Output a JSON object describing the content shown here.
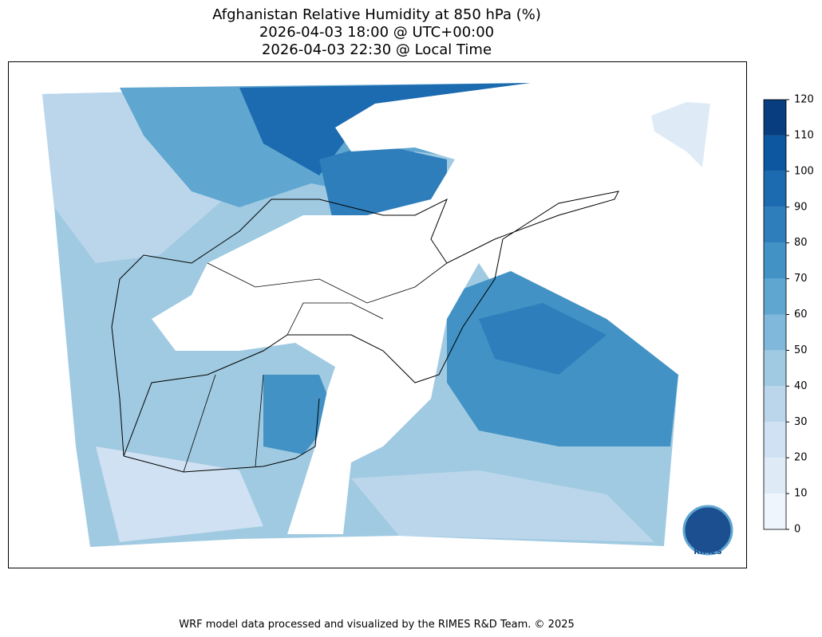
{
  "title": [
    "Afghanistan Relative Humidity at 850 hPa (%)",
    "2026-04-03 18:00 @ UTC+00:00",
    "2026-04-03 22:30 @ Local Time"
  ],
  "colorbar": {
    "ticks": [
      0,
      10,
      20,
      30,
      40,
      50,
      60,
      70,
      80,
      90,
      100,
      110,
      120
    ],
    "colors": [
      "#eff5fc",
      "#deebf7",
      "#cfe1f2",
      "#bbd6eb",
      "#a0cae1",
      "#7fb8da",
      "#5fa6d1",
      "#4292c6",
      "#2e7ebc",
      "#1c6aaf",
      "#0d57a1",
      "#083d7f"
    ]
  },
  "logo": "RIMES",
  "footer": "WRF model data processed and visualized by the RIMES R&D Team. © 2025"
}
